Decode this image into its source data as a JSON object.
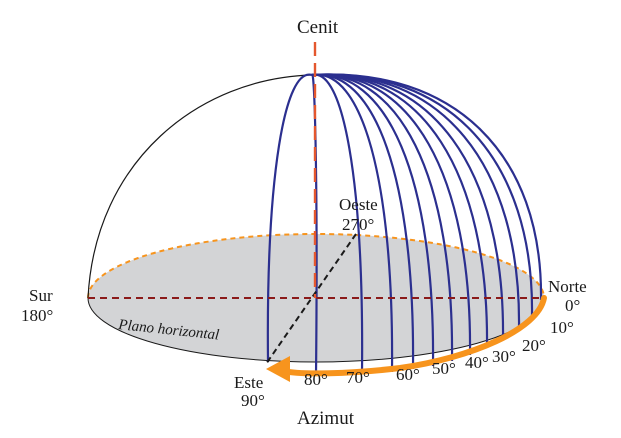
{
  "labels": {
    "zenith": "Cenit",
    "west": "Oeste",
    "west_deg": "270°",
    "north": "Norte",
    "north_deg": "0°",
    "south": "Sur",
    "south_deg": "180°",
    "east": "Este",
    "east_deg": "90°",
    "plane": "Plano horizontal",
    "azimuth": "Azimut"
  },
  "azimuth_ticks": [
    "10°",
    "20°",
    "30°",
    "40°",
    "50°",
    "60°",
    "70°",
    "80°"
  ],
  "colors": {
    "background": "#ffffff",
    "plane_fill": "#d3d4d6",
    "meridian": "#2b2f8f",
    "zenith_axis": "#e4572e",
    "north_south_line": "#8b1a1a",
    "east_west_line": "#1a1a1a",
    "azimuth_arrow": "#f7941d",
    "horizon_dash": "#f7941d",
    "dome_outline": "#1a1a1a"
  }
}
